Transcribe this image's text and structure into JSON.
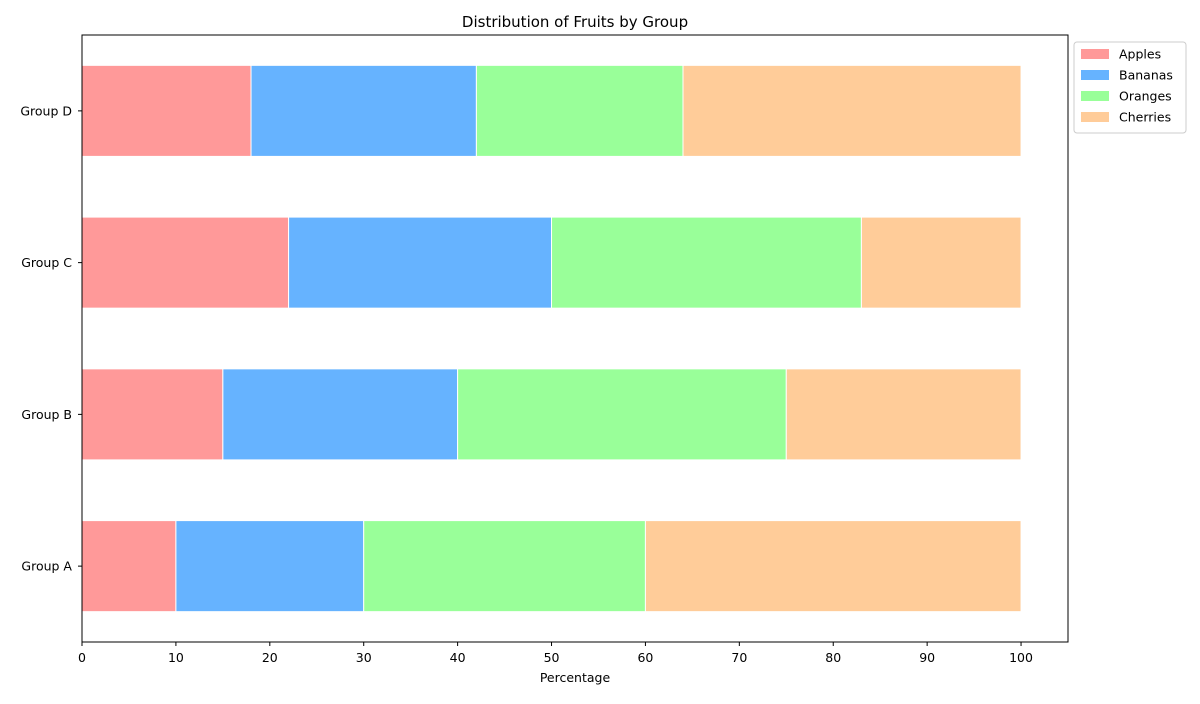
{
  "chart_data": {
    "type": "bar",
    "orientation": "horizontal",
    "stacked": true,
    "title": "Distribution of Fruits by Group",
    "xlabel": "Percentage",
    "ylabel": "",
    "categories": [
      "Group A",
      "Group B",
      "Group C",
      "Group D"
    ],
    "series": [
      {
        "name": "Apples",
        "color": "#ff9999",
        "values": [
          10,
          15,
          22,
          18
        ]
      },
      {
        "name": "Bananas",
        "color": "#66b3ff",
        "values": [
          20,
          25,
          28,
          24
        ]
      },
      {
        "name": "Oranges",
        "color": "#99ff99",
        "values": [
          30,
          35,
          33,
          22
        ]
      },
      {
        "name": "Cherries",
        "color": "#ffcc99",
        "values": [
          40,
          25,
          17,
          36
        ]
      }
    ],
    "xlim": [
      0,
      105
    ],
    "xticks": [
      0,
      10,
      20,
      30,
      40,
      50,
      60,
      70,
      80,
      90,
      100
    ],
    "grid": false,
    "legend": "outside-upper-right"
  }
}
